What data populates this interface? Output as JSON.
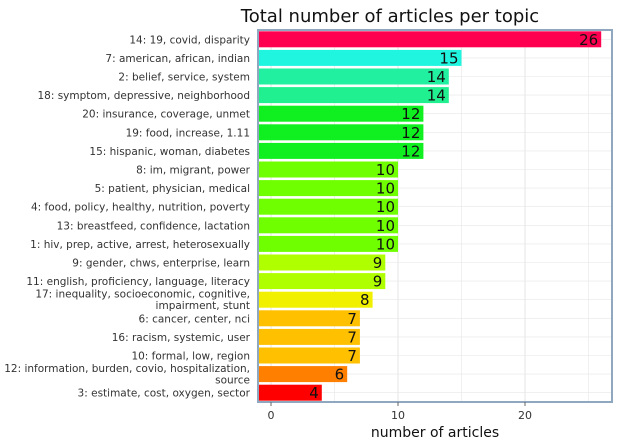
{
  "chart_data": {
    "type": "bar",
    "orientation": "horizontal",
    "title": "Total number of articles per topic",
    "xlabel": "number of articles",
    "ylabel": "",
    "xlim": [
      0,
      27.5
    ],
    "xticks": [
      0,
      10,
      20
    ],
    "grid": true,
    "legend": "none",
    "categories": [
      [
        "14: 19, covid, disparity"
      ],
      [
        "7: american, african, indian"
      ],
      [
        "2: belief, service, system"
      ],
      [
        "18: symptom, depressive, neighborhood"
      ],
      [
        "20: insurance, coverage, unmet"
      ],
      [
        "19: food, increase, 1.11"
      ],
      [
        "15: hispanic, woman, diabetes"
      ],
      [
        "8: im, migrant, power"
      ],
      [
        "5: patient, physician, medical"
      ],
      [
        "4: food, policy, healthy, nutrition, poverty"
      ],
      [
        "13: breastfeed, confidence, lactation"
      ],
      [
        "1: hiv, prep, active, arrest, heterosexually"
      ],
      [
        "9: gender, chws, enterprise, learn"
      ],
      [
        "11: english, proficiency, language, literacy"
      ],
      [
        "17: inequality, socioeconomic, cognitive,",
        "impairment, stunt"
      ],
      [
        "6: cancer, center, nci"
      ],
      [
        "16: racism, systemic, user"
      ],
      [
        "10: formal, low, region"
      ],
      [
        "12: information, burden, covio, hospitalization,",
        "source"
      ],
      [
        "3: estimate, cost, oxygen, sector"
      ]
    ],
    "values": [
      26,
      15,
      14,
      14,
      12,
      12,
      12,
      10,
      10,
      10,
      10,
      10,
      9,
      9,
      8,
      7,
      7,
      7,
      6,
      4
    ],
    "colors": [
      "#ff0050",
      "#20f5e0",
      "#20f0a0",
      "#20f090",
      "#10f020",
      "#10f020",
      "#10f020",
      "#70ff00",
      "#70ff00",
      "#70ff00",
      "#70ff00",
      "#70ff00",
      "#b0ff00",
      "#b0ff00",
      "#f0f000",
      "#ffc000",
      "#ffc000",
      "#ffc000",
      "#ff8000",
      "#ff0000"
    ],
    "frame_color": "#8fa8c0",
    "grid_color": "#e6e6e6"
  }
}
